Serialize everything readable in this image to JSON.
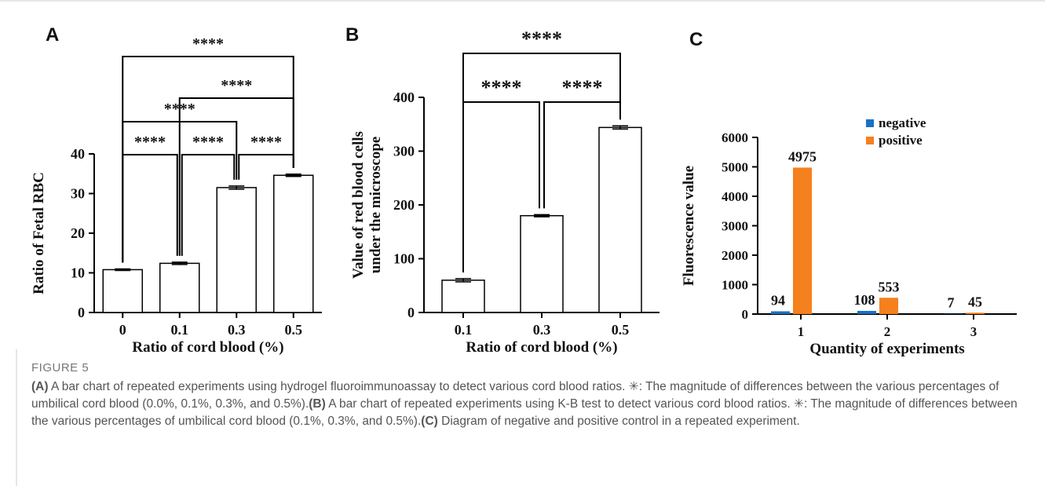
{
  "chart_data": [
    {
      "type": "bar",
      "panel": "A",
      "ylabel": [
        "Ratio of Fetal RBC"
      ],
      "xlabel": "Ratio of cord blood (%)",
      "categories": [
        "0",
        "0.1",
        "0.3",
        "0.5"
      ],
      "values": [
        10.8,
        12.4,
        31.5,
        34.6
      ],
      "errors": [
        0.2,
        0.3,
        0.4,
        0.3
      ],
      "color": "#ffffff",
      "ylim": [
        0,
        40
      ],
      "yticks": [
        0,
        10,
        20,
        30,
        40
      ],
      "brackets": [
        {
          "pair": [
            "0",
            "0.1"
          ],
          "label": "****"
        },
        {
          "pair": [
            "0.1",
            "0.3"
          ],
          "label": "****"
        },
        {
          "pair": [
            "0.3",
            "0.5"
          ],
          "label": "****"
        },
        {
          "pair": [
            "0",
            "0.3"
          ],
          "label": "****"
        },
        {
          "pair": [
            "0.1",
            "0.5"
          ],
          "label": "****"
        },
        {
          "pair": [
            "0",
            "0.5"
          ],
          "label": "****"
        }
      ]
    },
    {
      "type": "bar",
      "panel": "B",
      "ylabel": [
        "Value of red blood cells",
        "under the microscope"
      ],
      "xlabel": "Ratio of cord blood (%)",
      "categories": [
        "0.1",
        "0.3",
        "0.5"
      ],
      "values": [
        60,
        180,
        344
      ],
      "errors": [
        3,
        2,
        3
      ],
      "color": "#ffffff",
      "ylim": [
        0,
        400
      ],
      "yticks": [
        0,
        100,
        200,
        300,
        400
      ],
      "brackets": [
        {
          "pair": [
            "0.1",
            "0.3"
          ],
          "label": "****"
        },
        {
          "pair": [
            "0.3",
            "0.5"
          ],
          "label": "****"
        },
        {
          "pair": [
            "0.1",
            "0.5"
          ],
          "label": "****"
        }
      ]
    },
    {
      "type": "grouped_bar",
      "panel": "C",
      "ylabel": [
        "Fluorescence value"
      ],
      "xlabel": "Quantity of experiments",
      "categories": [
        "1",
        "2",
        "3"
      ],
      "series": [
        {
          "name": "negative",
          "color": "#1c6fc4",
          "values": [
            94,
            108,
            7
          ]
        },
        {
          "name": "positive",
          "color": "#f5801e",
          "values": [
            4975,
            553,
            45
          ]
        }
      ],
      "ylim": [
        0,
        6000
      ],
      "yticks": [
        0,
        1000,
        2000,
        3000,
        4000,
        5000,
        6000
      ],
      "legend": "top-right"
    }
  ],
  "figure": {
    "label": "FIGURE 5",
    "caption": [
      {
        "label": "(A)",
        "text": " A bar chart of repeated experiments using hydrogel fluoroimmunoassay to detect various cord blood ratios. ✳: The magnitude of differences between the various percentages of umbilical cord blood (0.0%, 0.1%, 0.3%, and 0.5%)."
      },
      {
        "label": "(B)",
        "text": " A bar chart of repeated experiments using K-B test to detect various cord blood ratios. ✳: The magnitude of differences between the various percentages of umbilical cord blood (0.1%, 0.3%, and 0.5%)."
      },
      {
        "label": "(C)",
        "text": " Diagram of negative and positive control in a repeated experiment."
      }
    ]
  }
}
